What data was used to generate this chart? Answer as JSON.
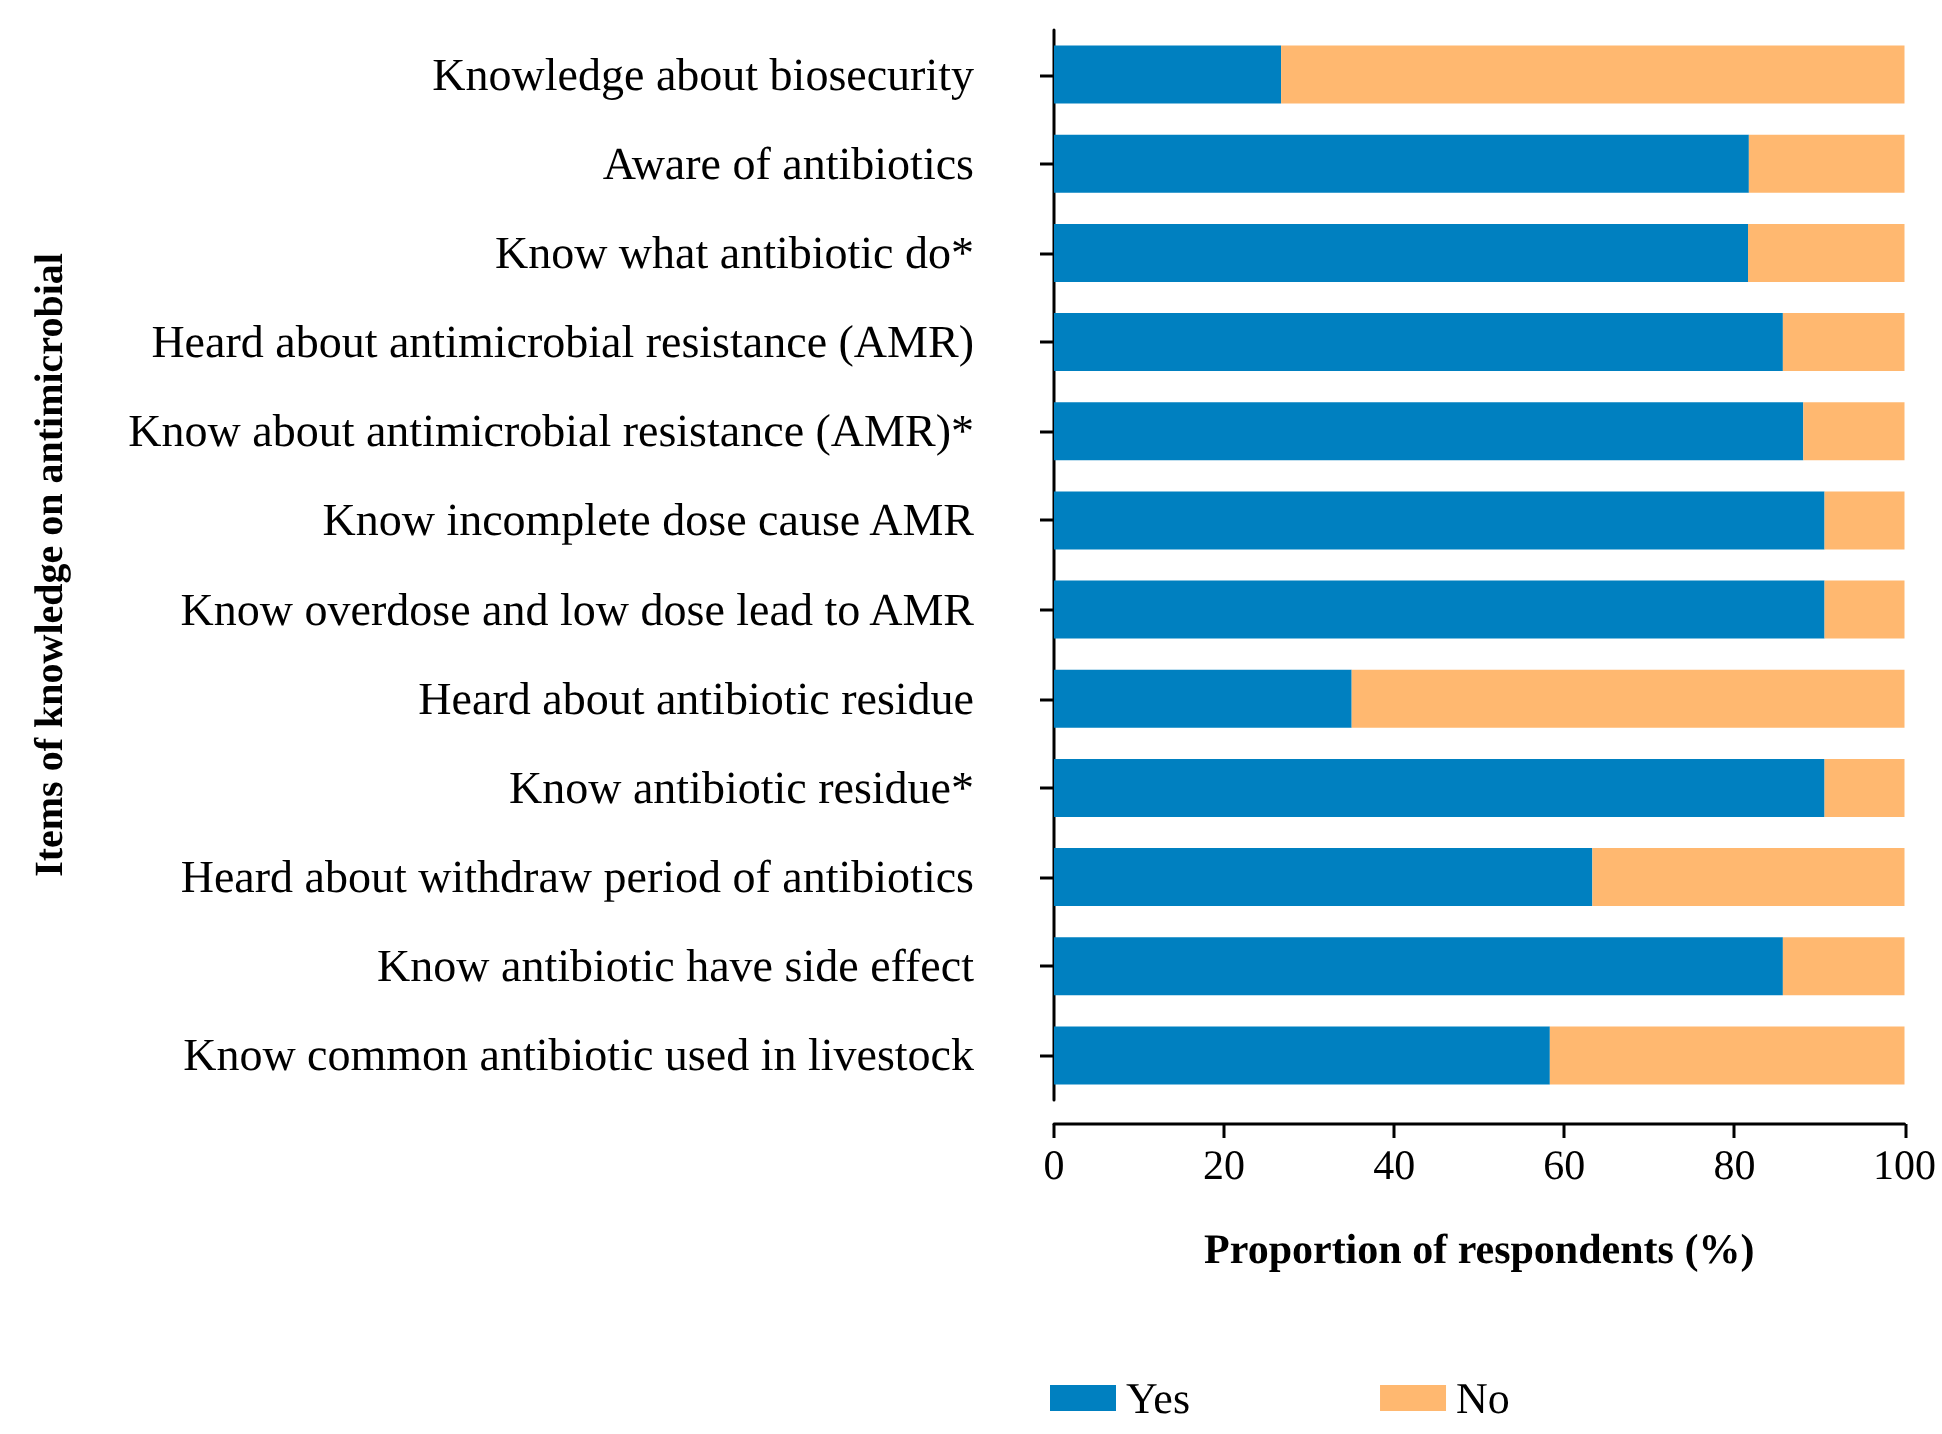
{
  "chart_data": {
    "type": "bar",
    "orientation": "horizontal",
    "stacked": true,
    "xlabel": "Proportion of respondents (%)",
    "ylabel": "Items of knowledge on antimicrobial",
    "categories": [
      "Knowledge about biosecurity",
      "Aware of antibiotics",
      "Know what antibiotic do*",
      "Heard about antimicrobial resistance (AMR)",
      "Know about antimicrobial resistance (AMR)*",
      "Know incomplete dose cause AMR",
      "Know overdose and low dose lead to AMR",
      "Heard about antibiotic residue",
      "Know antibiotic residue*",
      "Heard about withdraw period of antibiotics",
      "Know antibiotic have side effect",
      "Know common antibiotic used in livestock"
    ],
    "series": [
      {
        "name": "Yes",
        "color": "#0080c0",
        "values": [
          26.7,
          81.7,
          81.6,
          85.7,
          88.1,
          90.6,
          90.6,
          35.0,
          90.6,
          63.3,
          85.7,
          58.3
        ]
      },
      {
        "name": "No",
        "color": "#ffb870",
        "values": [
          73.3,
          18.3,
          18.4,
          14.3,
          11.9,
          9.4,
          9.4,
          65.0,
          9.4,
          36.7,
          14.3,
          41.7
        ]
      }
    ],
    "xlim": [
      0,
      100
    ],
    "xticks": [
      0,
      20,
      40,
      60,
      80,
      100
    ],
    "grid": false,
    "legend": "bottom"
  }
}
